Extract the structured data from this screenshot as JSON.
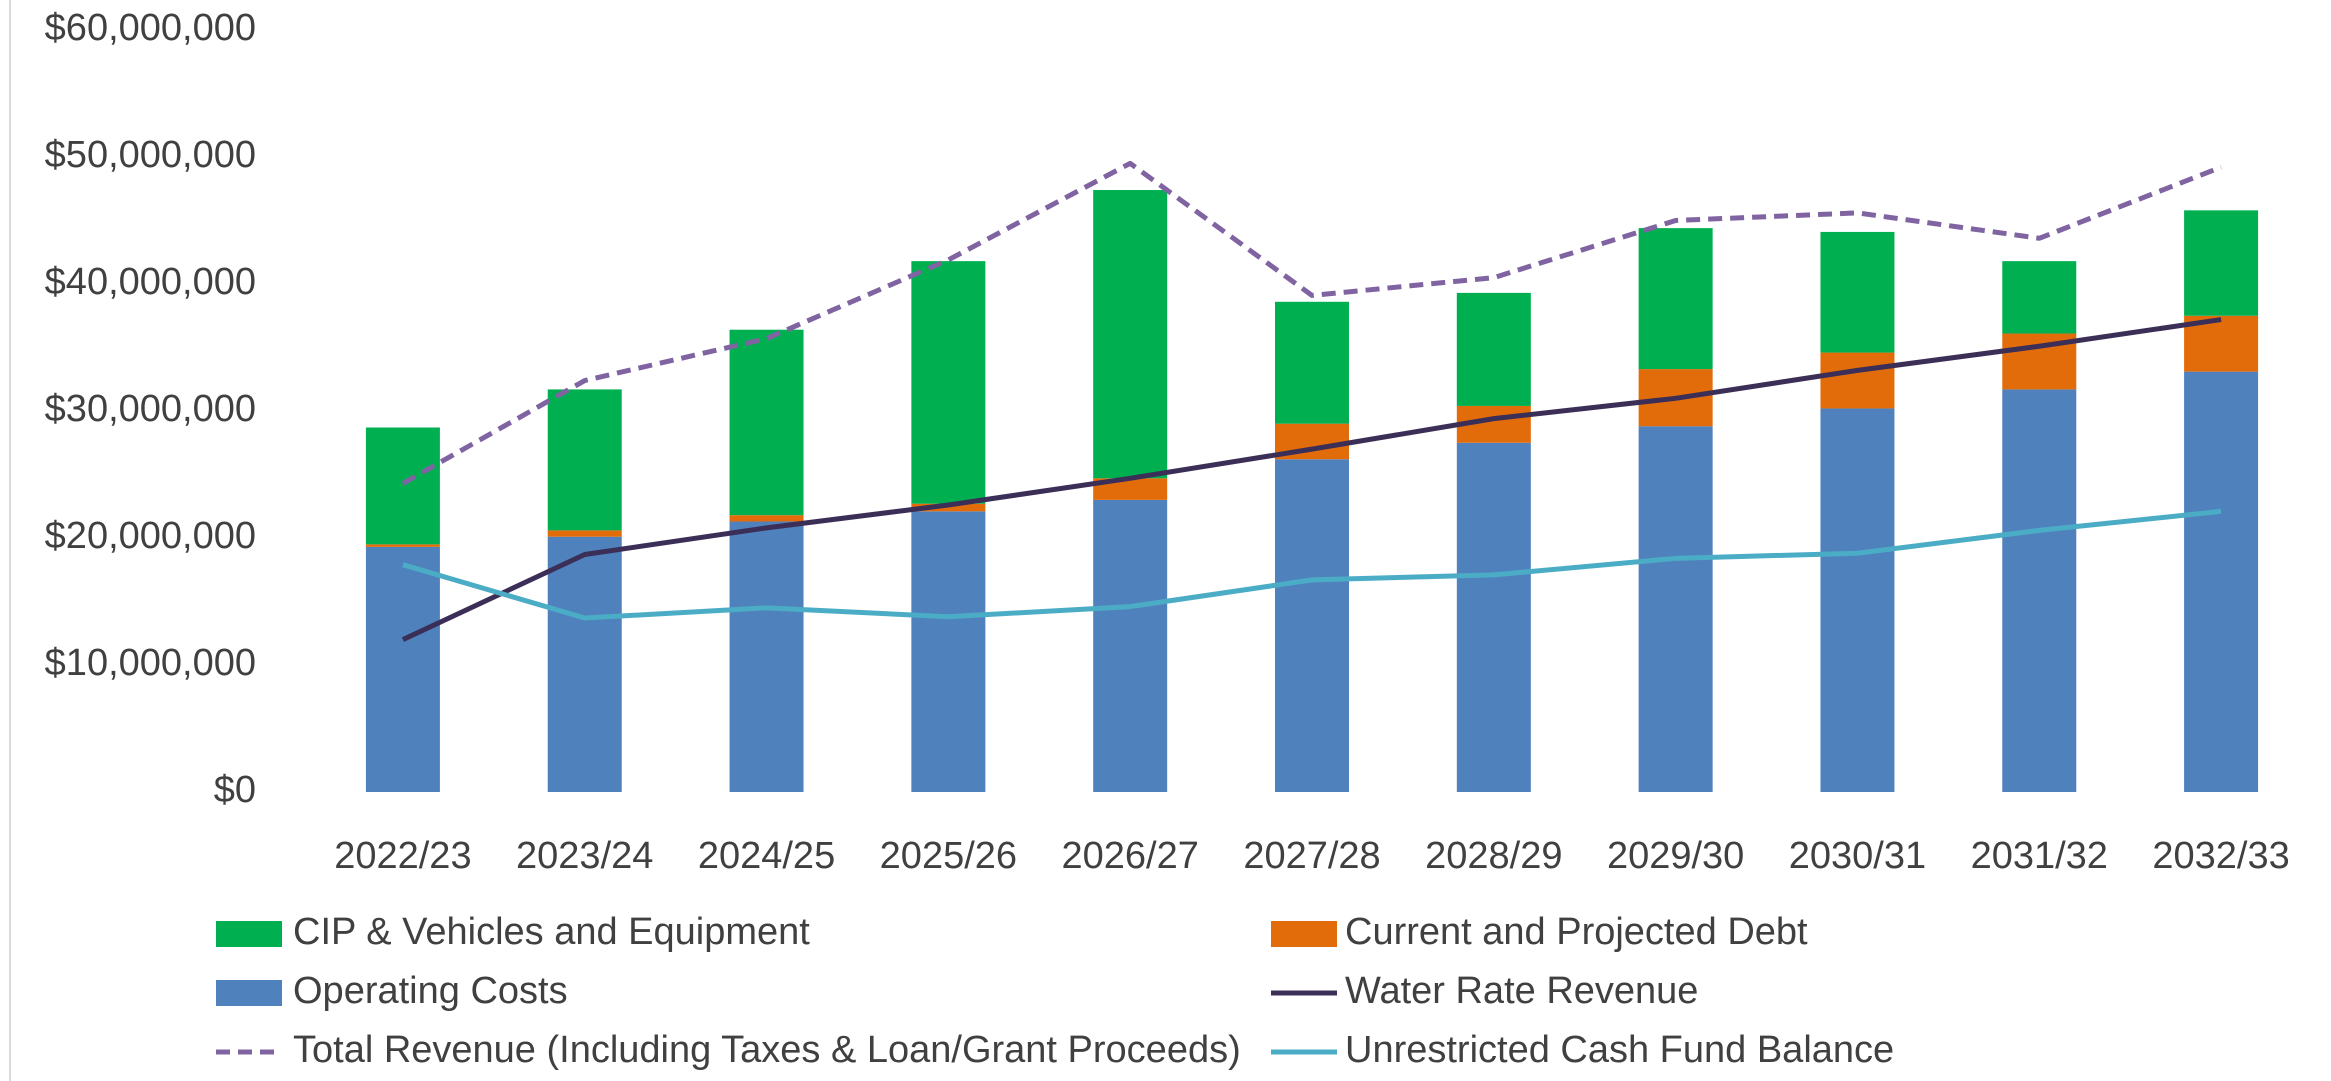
{
  "chart_data": {
    "type": "bar-line",
    "categories": [
      "2022/23",
      "2023/24",
      "2024/25",
      "2025/26",
      "2026/27",
      "2027/28",
      "2028/29",
      "2029/30",
      "2030/31",
      "2031/32",
      "2032/33"
    ],
    "series": [
      {
        "name": "CIP & Vehicles and Equipment",
        "type": "bar",
        "color": "#00b050",
        "values": [
          9200000,
          11100000,
          14600000,
          19100000,
          22700000,
          9600000,
          8900000,
          11100000,
          9500000,
          5700000,
          8300000
        ]
      },
      {
        "name": "Current and Projected Debt",
        "type": "bar",
        "color": "#e36c0a",
        "values": [
          200000,
          500000,
          500000,
          600000,
          1700000,
          2800000,
          2900000,
          4500000,
          4400000,
          4400000,
          4400000
        ]
      },
      {
        "name": "Operating Costs",
        "type": "bar",
        "color": "#4f81bd",
        "values": [
          19300000,
          20100000,
          21300000,
          22100000,
          23000000,
          26200000,
          27500000,
          28800000,
          30200000,
          31700000,
          33100000
        ]
      },
      {
        "name": "Water Rate Revenue",
        "type": "line",
        "style": "solid",
        "color": "#3b2f57",
        "values": [
          12000000,
          18700000,
          20800000,
          22600000,
          24700000,
          27000000,
          29400000,
          31000000,
          33200000,
          35100000,
          37200000
        ]
      },
      {
        "name": "Total Revenue (Including Taxes & Loan/Grant Proceeds)",
        "type": "line",
        "style": "dashed",
        "color": "#8064a2",
        "values": [
          24300000,
          32400000,
          35700000,
          41900000,
          49500000,
          39100000,
          40500000,
          45000000,
          45600000,
          43600000,
          49200000
        ]
      },
      {
        "name": "Unrestricted Cash Fund Balance",
        "type": "line",
        "style": "solid",
        "color": "#4bacc6",
        "values": [
          17900000,
          13700000,
          14500000,
          13800000,
          14600000,
          16700000,
          17100000,
          18400000,
          18800000,
          20600000,
          22100000
        ]
      }
    ],
    "ylim": [
      0,
      60000000
    ],
    "yticks": [
      {
        "value": 0,
        "label": "$0"
      },
      {
        "value": 10000000,
        "label": "$10,000,000"
      },
      {
        "value": 20000000,
        "label": "$20,000,000"
      },
      {
        "value": 30000000,
        "label": "$30,000,000"
      },
      {
        "value": 40000000,
        "label": "$40,000,000"
      },
      {
        "value": 50000000,
        "label": "$50,000,000"
      },
      {
        "value": 60000000,
        "label": "$60,000,000"
      }
    ],
    "grid": false,
    "legend": "bottom"
  }
}
